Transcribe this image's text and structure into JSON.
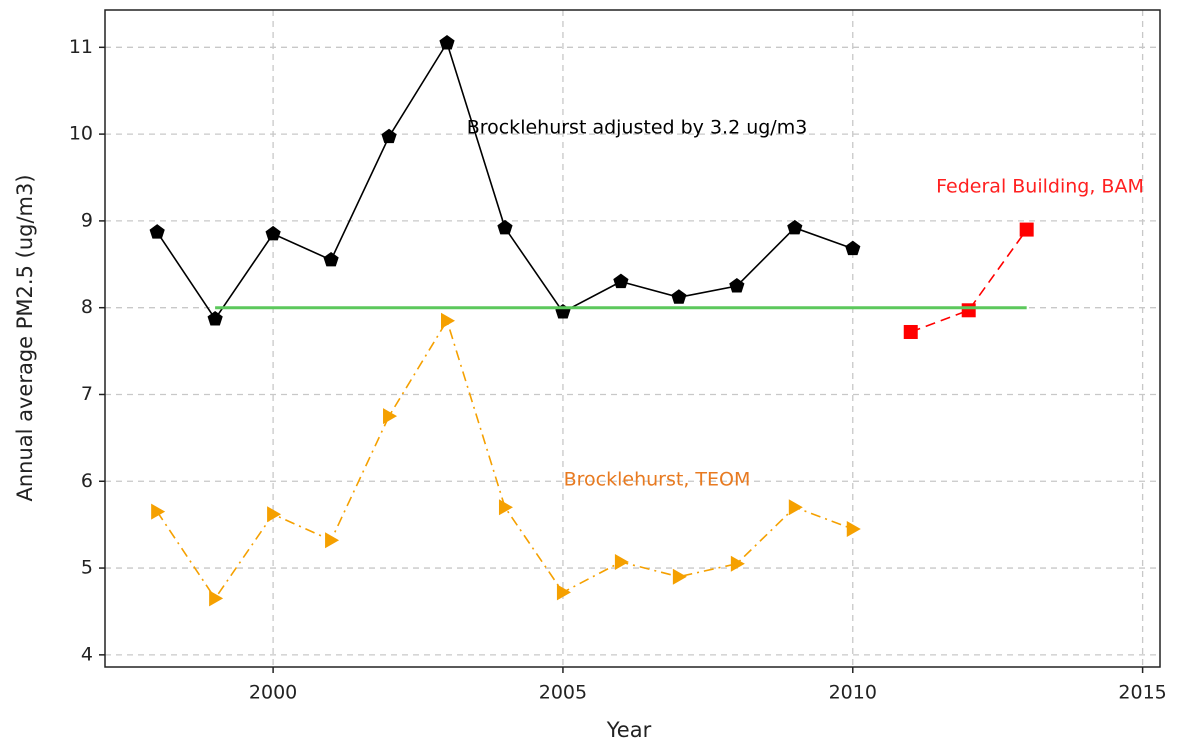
{
  "chart_data": {
    "type": "line",
    "x_label": "Year",
    "y_label": "Annual average PM2.5 (ug/m3)",
    "xlim": [
      1997.1,
      2015.3
    ],
    "ylim": [
      3.86,
      11.43
    ],
    "xticks": [
      2000,
      2005,
      2010,
      2015
    ],
    "yticks": [
      4,
      5,
      6,
      7,
      8,
      9,
      10,
      11
    ],
    "grid": true,
    "series": [
      {
        "name": "Brocklehurst adjusted by 3.2 ug/m3",
        "color": "#000000",
        "marker": "pentagon",
        "dash": "solid",
        "x": [
          1998,
          1999,
          2000,
          2001,
          2002,
          2003,
          2004,
          2005,
          2006,
          2007,
          2008,
          2009,
          2010
        ],
        "values": [
          8.87,
          7.87,
          8.85,
          8.55,
          9.97,
          11.05,
          8.92,
          7.95,
          8.3,
          8.12,
          8.25,
          8.92,
          8.68
        ]
      },
      {
        "name": "Brocklehurst, TEOM",
        "color": "#f5a000",
        "marker": "triangle-right",
        "dash": "dashdot",
        "x": [
          1998,
          1999,
          2000,
          2001,
          2002,
          2003,
          2004,
          2005,
          2006,
          2007,
          2008,
          2009,
          2010
        ],
        "values": [
          5.65,
          4.65,
          5.62,
          5.32,
          6.75,
          7.85,
          5.7,
          4.72,
          5.07,
          4.9,
          5.05,
          5.7,
          5.45
        ]
      },
      {
        "name": "Federal Building, BAM",
        "color": "#ff0000",
        "marker": "square",
        "dash": "dashed",
        "x": [
          2011,
          2012,
          2013
        ],
        "values": [
          7.72,
          7.97,
          8.9
        ]
      },
      {
        "color": "#5cc85c",
        "marker": "none",
        "dash": "solid",
        "x": [
          1999,
          2013
        ],
        "values": [
          8,
          8
        ]
      }
    ],
    "annotations": [
      {
        "text": "Brocklehurst adjusted by 3.2 ug/m3",
        "color": "#000000"
      },
      {
        "text": "Brocklehurst, TEOM",
        "color": "#e87a20"
      },
      {
        "text": "Federal Building, BAM",
        "color": "#ff2020"
      }
    ]
  }
}
